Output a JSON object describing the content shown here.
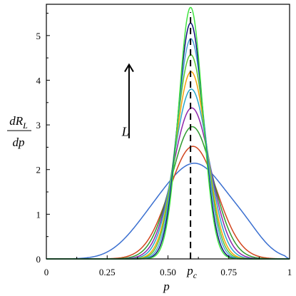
{
  "chart_data": {
    "type": "line",
    "xlabel": "p",
    "ylabel_numerator": "dR",
    "ylabel_subscript": "L",
    "ylabel_denominator": "dp",
    "xlim": [
      0,
      1
    ],
    "ylim": [
      0,
      5.7
    ],
    "x_ticks": [
      0,
      0.25,
      0.5,
      0.75,
      1
    ],
    "x_tick_labels": [
      "0",
      "0.25",
      "0.50",
      "0.75",
      "1"
    ],
    "y_ticks": [
      0,
      1,
      2,
      3,
      4,
      5
    ],
    "y_tick_labels": [
      "0",
      "1",
      "2",
      "3",
      "4",
      "5"
    ],
    "grid": false,
    "critical_point": {
      "label": "p",
      "subscript": "c",
      "x": 0.5927
    },
    "annotation": {
      "label": "L",
      "direction": "up",
      "text_x": 0.31,
      "text_y": 2.85,
      "arrow_x": 0.34,
      "arrow_y0": 2.7,
      "arrow_y1": 4.35
    },
    "series": [
      {
        "peak_x": 0.62,
        "peak": 2.05,
        "width": 0.125,
        "shoulders": true,
        "color": "#3a6fd0"
      },
      {
        "peak_x": 0.603,
        "peak": 2.52,
        "width": 0.098,
        "shoulders": false,
        "color": "#d2451e"
      },
      {
        "peak_x": 0.6,
        "peak": 2.96,
        "width": 0.086,
        "shoulders": false,
        "color": "#2e9a2e"
      },
      {
        "peak_x": 0.598,
        "peak": 3.38,
        "width": 0.077,
        "shoulders": false,
        "color": "#8e24aa"
      },
      {
        "peak_x": 0.596,
        "peak": 3.8,
        "width": 0.07,
        "shoulders": false,
        "color": "#2aa7c9"
      },
      {
        "peak_x": 0.595,
        "peak": 4.19,
        "width": 0.064,
        "shoulders": false,
        "color": "#f5a00c"
      },
      {
        "peak_x": 0.594,
        "peak": 4.57,
        "width": 0.06,
        "shoulders": false,
        "color": "#59c930"
      },
      {
        "peak_x": 0.594,
        "peak": 4.93,
        "width": 0.056,
        "shoulders": false,
        "color": "#4aa5d8"
      },
      {
        "peak_x": 0.593,
        "peak": 5.28,
        "width": 0.052,
        "shoulders": false,
        "color": "#0f0f7a"
      },
      {
        "peak_x": 0.593,
        "peak": 5.63,
        "width": 0.049,
        "shoulders": false,
        "color": "#3fe33f"
      }
    ]
  }
}
